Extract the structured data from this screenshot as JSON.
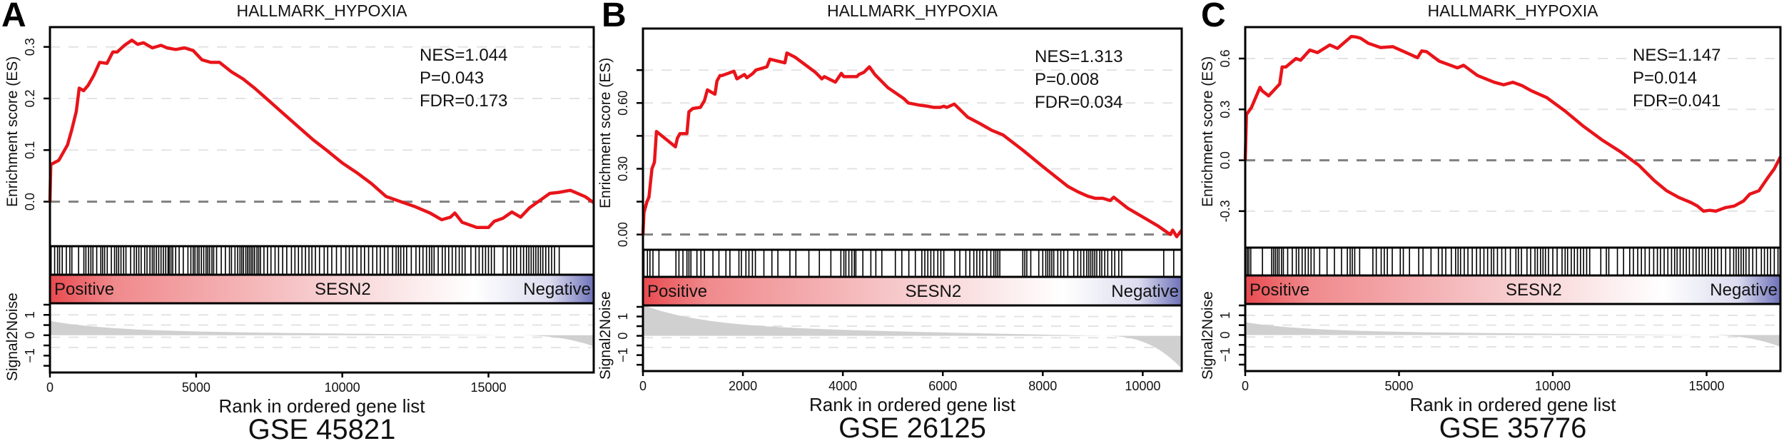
{
  "chart_data": [
    {
      "type": "line",
      "panel": "A",
      "title": "HALLMARK_HYPOXIA",
      "dataset": "GSE 45821",
      "gene": "SESN2",
      "xlabel": "Rank in ordered gene list",
      "ylabel": "Enrichment score (ES)",
      "ylabel_bottom": "Signal2Noise",
      "gradient_left": "Positive",
      "gradient_right": "Negative",
      "stats": [
        "NES=1.044",
        "P=0.043",
        "FDR=0.173"
      ],
      "xlim": [
        0,
        18600
      ],
      "ylim": [
        -0.078,
        0.33
      ],
      "x_ticks": [
        0,
        5000,
        10000,
        15000
      ],
      "y_ticks": [
        0.0,
        0.1,
        0.2,
        0.3
      ],
      "y_tick_labels": [
        "0.0",
        "0.1",
        "0.2",
        "0.3"
      ],
      "sn_ticks": [
        1,
        0,
        -1
      ],
      "es_curve": {
        "x": [
          0,
          30,
          300,
          600,
          750,
          900,
          1000,
          1150,
          1300,
          1500,
          1700,
          1950,
          2150,
          2300,
          2550,
          2800,
          3000,
          3200,
          3500,
          3800,
          4000,
          4300,
          4600,
          4900,
          5200,
          5500,
          5800,
          6200,
          6600,
          7000,
          7500,
          8000,
          8500,
          9000,
          9500,
          10000,
          10500,
          11000,
          11500,
          12000,
          12500,
          13000,
          13400,
          13700,
          13850,
          14100,
          14600,
          15000,
          15200,
          15500,
          15800,
          16100,
          16400,
          16700,
          17100,
          17400,
          17800,
          18300,
          18600
        ],
        "y": [
          0.0,
          0.072,
          0.08,
          0.11,
          0.14,
          0.175,
          0.22,
          0.215,
          0.225,
          0.245,
          0.27,
          0.268,
          0.29,
          0.29,
          0.303,
          0.313,
          0.305,
          0.308,
          0.298,
          0.303,
          0.298,
          0.295,
          0.298,
          0.293,
          0.275,
          0.27,
          0.27,
          0.252,
          0.238,
          0.22,
          0.195,
          0.17,
          0.145,
          0.12,
          0.098,
          0.075,
          0.056,
          0.035,
          0.01,
          0.0,
          -0.01,
          -0.022,
          -0.035,
          -0.03,
          -0.022,
          -0.04,
          -0.05,
          -0.05,
          -0.038,
          -0.032,
          -0.02,
          -0.03,
          -0.012,
          0.0,
          0.016,
          0.018,
          0.022,
          0.01,
          -0.002
        ]
      },
      "hits": [
        40,
        160,
        260,
        330,
        420,
        560,
        680,
        750,
        980,
        1160,
        1230,
        1320,
        1400,
        1470,
        1600,
        1740,
        1800,
        1870,
        1960,
        2100,
        2210,
        2280,
        2350,
        2430,
        2520,
        2600,
        2760,
        2880,
        2960,
        3040,
        3120,
        3240,
        3320,
        3420,
        3500,
        3560,
        3640,
        3720,
        3800,
        3880,
        3960,
        4040,
        4080,
        4140,
        4200,
        4300,
        4420,
        4560,
        4720,
        4820,
        4900,
        4960,
        5040,
        5100,
        5180,
        5260,
        5340,
        5400,
        5460,
        5540,
        5600,
        5700,
        5860,
        6000,
        6140,
        6210,
        6330,
        6420,
        6500,
        6560,
        6620,
        6700,
        6760,
        6820,
        6880,
        6940,
        7000,
        7080,
        7140,
        7200,
        7320,
        7440,
        7560,
        7700,
        7820,
        7960,
        8100,
        8260,
        8380,
        8500,
        8620,
        8740,
        8860,
        8960,
        9080,
        9220,
        9380,
        9500,
        9640,
        9800,
        9960,
        10120,
        10240,
        10360,
        10500,
        10640,
        10760,
        10900,
        11040,
        11180,
        11300,
        11440,
        11560,
        11720,
        11840,
        11920,
        12000,
        12100,
        12200,
        12360,
        12520,
        12640,
        12760,
        12880,
        12980,
        13060,
        13140,
        13280,
        13420,
        13520,
        13640,
        13760,
        13880,
        14000,
        14100,
        14200,
        14400,
        14560,
        14680,
        14800,
        14900,
        15000,
        15100,
        15200,
        15500,
        15640,
        15760,
        15860,
        15960,
        16100,
        16200,
        16300,
        16380,
        16460,
        16540,
        16620,
        16700,
        16780,
        16860,
        16960,
        17060,
        17160,
        17260,
        17420
      ],
      "signal2noise": {
        "start": 0.7,
        "end": -0.55
      }
    },
    {
      "type": "line",
      "panel": "B",
      "title": "HALLMARK_HYPOXIA",
      "dataset": "GSE 26125",
      "gene": "SESN2",
      "xlabel": "Rank in ordered gene list",
      "ylabel": "Enrichment score (ES)",
      "ylabel_bottom": "Signal2Noise",
      "gradient_left": "Positive",
      "gradient_right": "Negative",
      "stats": [
        "NES=1.313",
        "P=0.008",
        "FDR=0.034"
      ],
      "xlim": [
        0,
        10780
      ],
      "ylim": [
        -0.05,
        0.92
      ],
      "x_ticks": [
        0,
        2000,
        4000,
        6000,
        8000,
        10000
      ],
      "y_ticks": [
        0.0,
        0.15,
        0.3,
        0.45,
        0.6,
        0.75
      ],
      "y_tick_labels": [
        "0.00",
        "",
        "0.30",
        "",
        "0.60",
        ""
      ],
      "sn_ticks": [
        1,
        0,
        -1
      ],
      "es_curve": {
        "x": [
          0,
          20,
          80,
          120,
          180,
          230,
          270,
          650,
          690,
          740,
          880,
          920,
          1000,
          1150,
          1230,
          1290,
          1440,
          1480,
          1540,
          1580,
          1820,
          1880,
          2030,
          2080,
          2200,
          2260,
          2480,
          2540,
          2840,
          2880,
          3050,
          3450,
          3580,
          3630,
          3850,
          3970,
          4020,
          4280,
          4320,
          4420,
          4530,
          4640,
          4900,
          5220,
          5310,
          5420,
          5540,
          5700,
          5820,
          5950,
          6020,
          6080,
          6230,
          6500,
          6750,
          6980,
          7200,
          7600,
          8000,
          8500,
          8700,
          8900,
          9050,
          9200,
          9350,
          9420,
          9700,
          10000,
          10300,
          10550,
          10600,
          10680,
          10780
        ],
        "y": [
          0.0,
          0.1,
          0.15,
          0.17,
          0.3,
          0.33,
          0.47,
          0.4,
          0.44,
          0.46,
          0.46,
          0.56,
          0.575,
          0.58,
          0.61,
          0.66,
          0.64,
          0.7,
          0.725,
          0.725,
          0.745,
          0.71,
          0.73,
          0.715,
          0.735,
          0.75,
          0.765,
          0.8,
          0.783,
          0.828,
          0.808,
          0.74,
          0.71,
          0.72,
          0.695,
          0.735,
          0.72,
          0.72,
          0.73,
          0.74,
          0.765,
          0.73,
          0.67,
          0.62,
          0.6,
          0.595,
          0.59,
          0.585,
          0.58,
          0.58,
          0.585,
          0.58,
          0.595,
          0.535,
          0.505,
          0.475,
          0.455,
          0.385,
          0.31,
          0.22,
          0.195,
          0.175,
          0.165,
          0.165,
          0.155,
          0.17,
          0.12,
          0.08,
          0.04,
          0.0,
          0.02,
          -0.01,
          0.02
        ]
      },
      "hits": [
        20,
        90,
        140,
        200,
        320,
        660,
        720,
        800,
        880,
        920,
        960,
        1080,
        1160,
        1230,
        1400,
        1520,
        1660,
        1740,
        1920,
        1970,
        2060,
        2120,
        2190,
        2250,
        2420,
        2580,
        2700,
        2940,
        3060,
        3320,
        3530,
        3760,
        3960,
        4020,
        4060,
        4120,
        4180,
        4230,
        4260,
        4400,
        4560,
        4660,
        4780,
        5050,
        5180,
        5320,
        5450,
        5580,
        5640,
        5700,
        5760,
        5820,
        5900,
        5960,
        6020,
        6240,
        6340,
        6460,
        6540,
        6620,
        6680,
        6740,
        6800,
        6880,
        6960,
        7020,
        7060,
        7100,
        7140,
        7600,
        7640,
        7680,
        7760,
        7920,
        8000,
        8060,
        8100,
        8140,
        8180,
        8220,
        8300,
        8360,
        8420,
        8500,
        8620,
        8700,
        8760,
        8820,
        8880,
        8920,
        8960,
        9000,
        9040,
        9080,
        9140,
        9180,
        9240,
        9300,
        9380,
        9440,
        9520,
        9580,
        10420,
        10620
      ],
      "signal2noise": {
        "start": 1.6,
        "end": -1.7
      }
    },
    {
      "type": "line",
      "panel": "C",
      "title": "HALLMARK_HYPOXIA",
      "dataset": "GSE 35776",
      "gene": "SESN2",
      "xlabel": "Rank in ordered gene list",
      "ylabel": "Enrichment score (ES)",
      "ylabel_bottom": "Signal2Noise",
      "gradient_left": "Positive",
      "gradient_right": "Negative",
      "stats": [
        "NES=1.147",
        "P=0.014",
        "FDR=0.041"
      ],
      "xlim": [
        0,
        17400
      ],
      "ylim": [
        -0.49,
        0.76
      ],
      "x_ticks": [
        0,
        5000,
        10000,
        15000
      ],
      "y_ticks": [
        -0.3,
        0.0,
        0.3,
        0.6
      ],
      "y_tick_labels": [
        "-0.3",
        "0.0",
        "0.3",
        "0.6"
      ],
      "sn_ticks": [
        1,
        0,
        -1
      ],
      "es_curve": {
        "x": [
          0,
          40,
          200,
          480,
          550,
          760,
          1120,
          1200,
          1320,
          1650,
          1800,
          2100,
          2350,
          2750,
          3000,
          3450,
          3600,
          3750,
          4000,
          4400,
          4800,
          5600,
          5740,
          5900,
          6300,
          6900,
          7100,
          7550,
          8100,
          8400,
          8700,
          9000,
          9300,
          9800,
          10400,
          11000,
          11600,
          12200,
          12800,
          13300,
          13700,
          14100,
          14500,
          14700,
          14900,
          15100,
          15300,
          15600,
          15900,
          16200,
          16400,
          16700,
          17000,
          17200,
          17400
        ],
        "y": [
          0.0,
          0.27,
          0.31,
          0.43,
          0.41,
          0.38,
          0.45,
          0.55,
          0.55,
          0.6,
          0.59,
          0.65,
          0.635,
          0.68,
          0.66,
          0.73,
          0.727,
          0.72,
          0.69,
          0.665,
          0.67,
          0.605,
          0.645,
          0.64,
          0.585,
          0.545,
          0.56,
          0.5,
          0.46,
          0.445,
          0.46,
          0.44,
          0.41,
          0.37,
          0.29,
          0.2,
          0.12,
          0.05,
          -0.03,
          -0.12,
          -0.18,
          -0.22,
          -0.25,
          -0.27,
          -0.3,
          -0.295,
          -0.3,
          -0.28,
          -0.27,
          -0.24,
          -0.2,
          -0.18,
          -0.1,
          -0.05,
          0.02
        ]
      },
      "hits": [
        20,
        70,
        120,
        180,
        560,
        860,
        920,
        980,
        1040,
        1100,
        1180,
        1240,
        1380,
        1530,
        1660,
        1740,
        1850,
        1950,
        2050,
        2140,
        2240,
        2420,
        2660,
        2900,
        3130,
        3320,
        3410,
        3480,
        3560,
        3720,
        4150,
        4260,
        4420,
        4520,
        4620,
        4780,
        5040,
        5140,
        5340,
        5640,
        5780,
        6040,
        6280,
        6400,
        6520,
        6700,
        6840,
        6920,
        7000,
        7120,
        7240,
        7380,
        7520,
        7640,
        7760,
        7880,
        8000,
        8080,
        8200,
        8340,
        8460,
        8620,
        8800,
        8880,
        8980,
        9160,
        9280,
        9420,
        9500,
        9600,
        9680,
        9760,
        9860,
        10000,
        10140,
        10300,
        10400,
        10480,
        10600,
        10700,
        10800,
        10900,
        11000,
        11100,
        11200,
        11560,
        11740,
        11820,
        12100,
        12300,
        12500,
        12620,
        12760,
        12880,
        13000,
        13140,
        13280,
        13400,
        13500,
        13620,
        13740,
        13860,
        13960,
        14040,
        14140,
        14240,
        14340,
        14440,
        14560,
        14660,
        14760,
        14860,
        14960,
        15060,
        15160,
        15260,
        15360,
        15480,
        15620,
        15760,
        15880,
        15960,
        16040,
        16120,
        16200,
        16280,
        16380,
        16500,
        16620,
        16780,
        16880,
        16980,
        17080,
        17200,
        17320
      ],
      "signal2noise": {
        "start": 0.65,
        "end": -0.6
      }
    }
  ],
  "colors": {
    "es_line": "#e8141a",
    "zero_line": "#808080",
    "grid": "#e3e3e3",
    "positive": "#e84a4f",
    "negative": "#6e72b8",
    "signal_fill": "#d0d0d0"
  }
}
